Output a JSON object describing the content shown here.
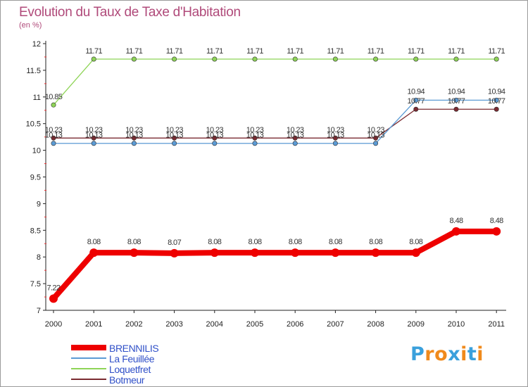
{
  "header": {
    "title": "Evolution du Taux de Taxe d'Habitation",
    "subtitle": "(en %)"
  },
  "chart_data": {
    "type": "line",
    "title": "Evolution du Taux de Taxe d'Habitation",
    "ylabel": "(en %)",
    "xlabel": "",
    "ylim": [
      7,
      12
    ],
    "yticks": [
      "7",
      "7.5",
      "8",
      "8.5",
      "9",
      "9.5",
      "10",
      "10.5",
      "11",
      "11.5",
      "12"
    ],
    "x": [
      "2000",
      "2001",
      "2002",
      "2003",
      "2004",
      "2005",
      "2006",
      "2007",
      "2008",
      "2009",
      "2010",
      "2011"
    ],
    "series": [
      {
        "name": "BRENNILIS",
        "color": "#ee0000",
        "values": [
          7.22,
          8.08,
          8.08,
          8.07,
          8.08,
          8.08,
          8.08,
          8.08,
          8.08,
          8.08,
          8.48,
          8.48
        ],
        "labels": [
          "7.22",
          "8.08",
          "8.08",
          "8.07",
          "8.08",
          "8.08",
          "8.08",
          "8.08",
          "8.08",
          "8.08",
          "8.48",
          "8.48"
        ]
      },
      {
        "name": "La Feuillée",
        "color": "#5b9bd5",
        "values": [
          10.13,
          10.13,
          10.13,
          10.13,
          10.13,
          10.13,
          10.13,
          10.13,
          10.13,
          10.94,
          10.94,
          10.94
        ],
        "labels": [
          "10.13",
          "10.13",
          "10.13",
          "10.13",
          "10.13",
          "10.13",
          "10.13",
          "10.13",
          "10.13",
          "10.94",
          "10.94",
          "10.94"
        ]
      },
      {
        "name": "Loquetfret",
        "color": "#8ed456",
        "values": [
          10.85,
          11.71,
          11.71,
          11.71,
          11.71,
          11.71,
          11.71,
          11.71,
          11.71,
          11.71,
          11.71,
          11.71
        ],
        "labels": [
          "10.85",
          "11.71",
          "11.71",
          "11.71",
          "11.71",
          "11.71",
          "11.71",
          "11.71",
          "11.71",
          "11.71",
          "11.71",
          "11.71"
        ]
      },
      {
        "name": "Botmeur",
        "color": "#7a2a30",
        "values": [
          10.23,
          10.23,
          10.23,
          10.23,
          10.23,
          10.23,
          10.23,
          10.23,
          10.23,
          10.77,
          10.77,
          10.77
        ],
        "labels": [
          "10.23",
          "10.23",
          "10.23",
          "10.23",
          "10.23",
          "10.23",
          "10.23",
          "10.23",
          "10.23",
          "10.77",
          "10.77",
          "10.77"
        ]
      }
    ],
    "legend": {
      "position": "bottom-left"
    },
    "grid": false
  },
  "brand": {
    "letters": [
      "P",
      "r",
      "o",
      "x",
      "i",
      "t",
      "i"
    ],
    "colors": [
      "#3aa0dc",
      "#f08a1c",
      "#f08a1c",
      "#3aa0dc",
      "#f08a1c",
      "#3aa0dc",
      "#f08a1c"
    ]
  }
}
